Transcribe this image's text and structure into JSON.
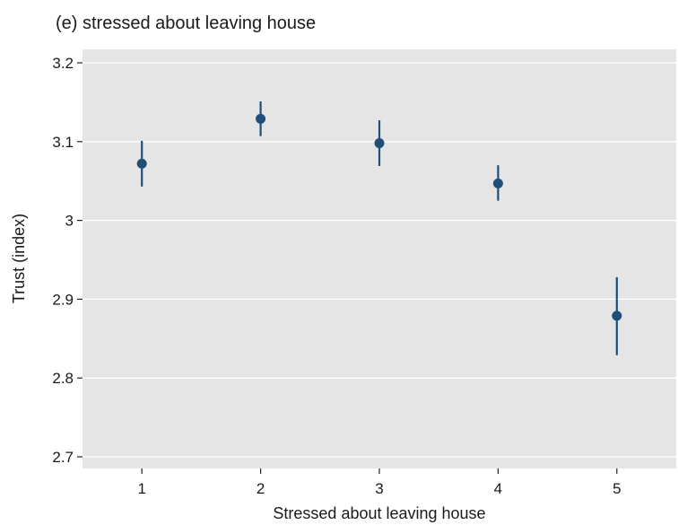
{
  "chart_data": {
    "type": "scatter",
    "title": "(e) stressed about leaving house",
    "xlabel": "Stressed about leaving house",
    "ylabel": "Trust (index)",
    "x_ticks": [
      "1",
      "2",
      "3",
      "4",
      "5"
    ],
    "y_ticks": [
      "2.7",
      "2.8",
      "2.9",
      "3",
      "3.1",
      "3.2"
    ],
    "ylim": [
      2.7,
      3.2
    ],
    "xlim": [
      0.5,
      5.5
    ],
    "grid": true,
    "background_color": "#e5e5e5",
    "marker_color": "#1f4e79",
    "series": [
      {
        "x": [
          1,
          2,
          3,
          4,
          5
        ],
        "y": [
          3.072,
          3.129,
          3.098,
          3.047,
          2.879
        ],
        "ci_low": [
          3.043,
          3.107,
          3.069,
          3.025,
          2.829
        ],
        "ci_high": [
          3.101,
          3.151,
          3.127,
          3.07,
          2.928
        ]
      }
    ]
  }
}
